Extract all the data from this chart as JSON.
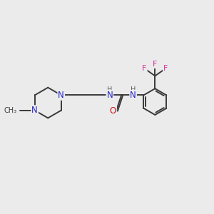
{
  "background_color": "#ebebeb",
  "bond_color": "#3a3a3a",
  "N_color": "#2828cc",
  "O_color": "#cc1010",
  "F_color": "#cc3399",
  "H_color": "#606060",
  "figsize": [
    3.0,
    3.0
  ],
  "dpi": 100,
  "xlim": [
    0,
    10
  ],
  "ylim": [
    0,
    10
  ]
}
